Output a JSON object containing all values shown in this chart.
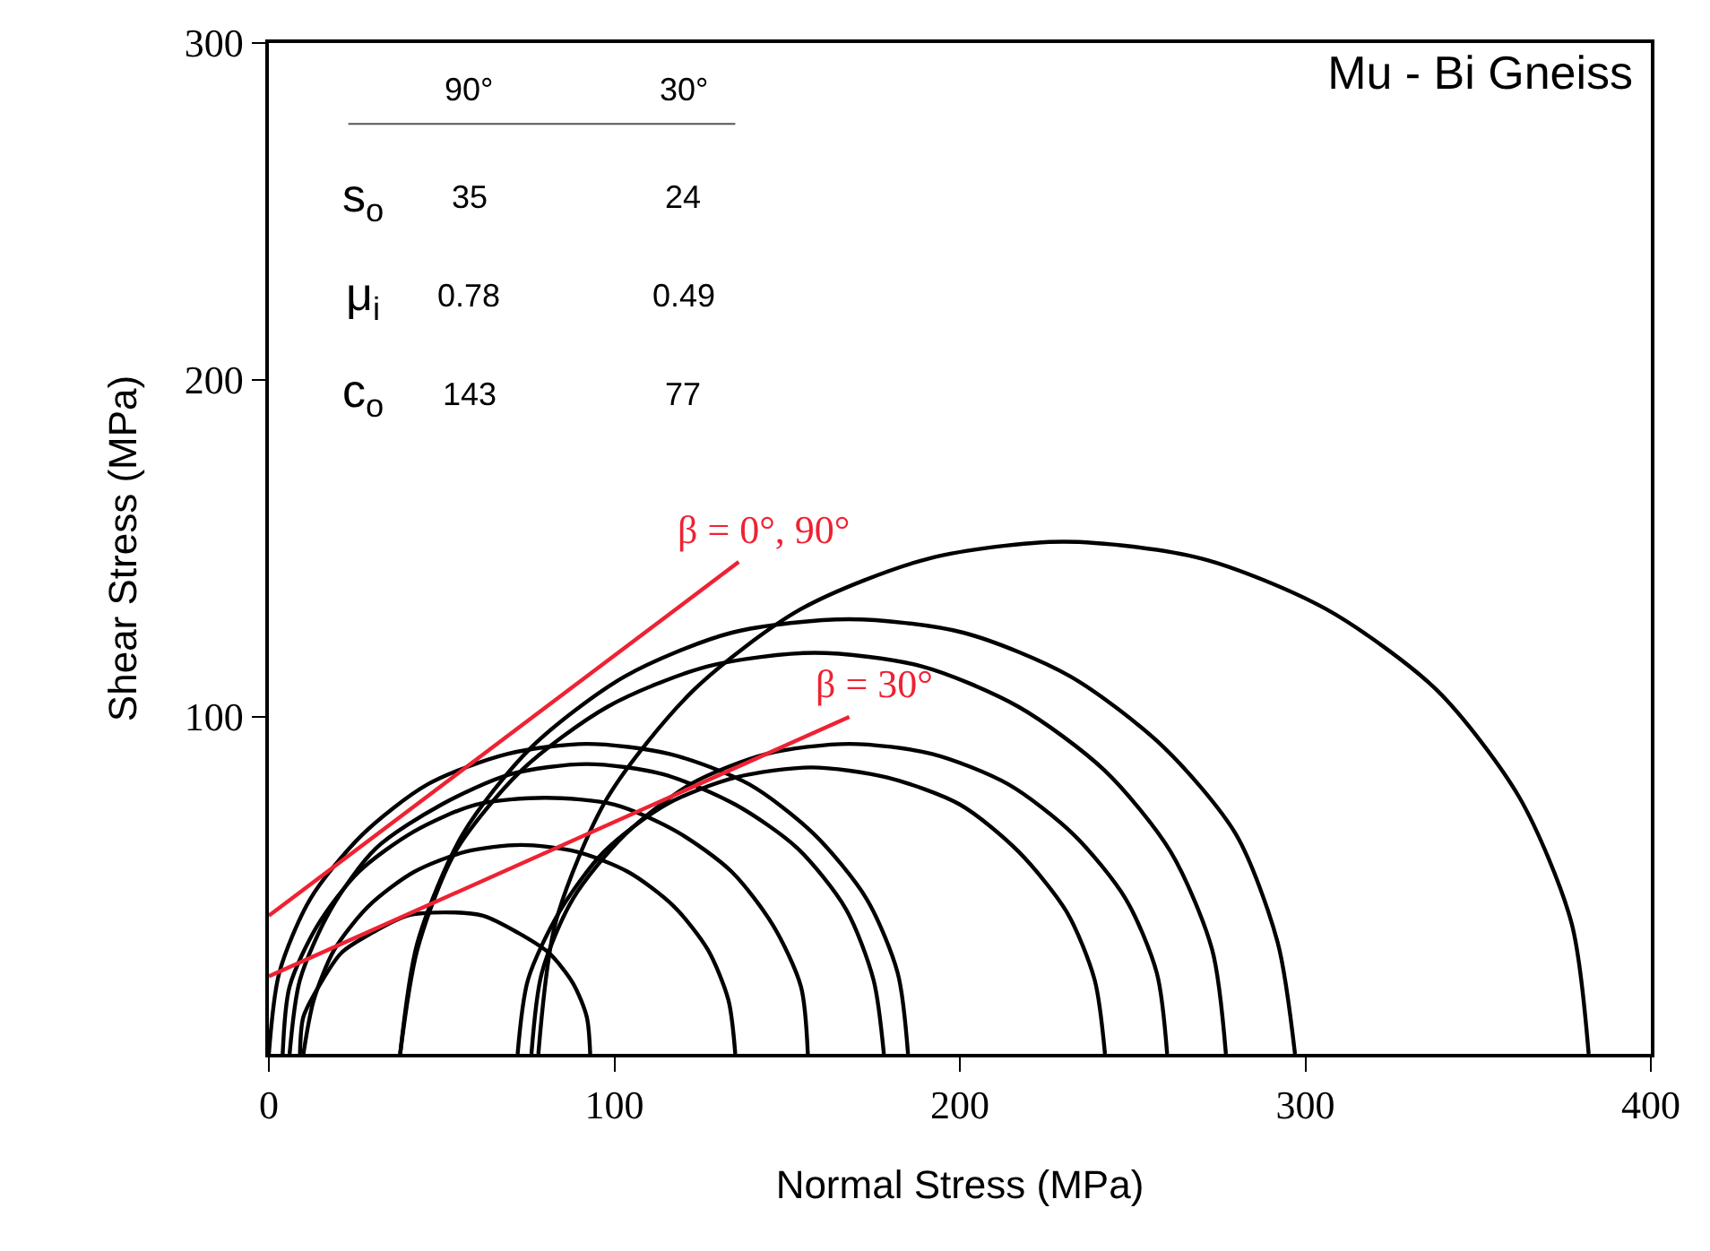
{
  "chart_data": {
    "type": "line",
    "title": "Mu - Bi Gneiss",
    "xlabel": "Normal Stress (MPa)",
    "ylabel": "Shear Stress (MPa)",
    "xlim": [
      0,
      400
    ],
    "ylim": [
      0,
      300
    ],
    "xticks": [
      0,
      100,
      200,
      300,
      400
    ],
    "yticks": [
      100,
      200,
      300
    ],
    "legend": false,
    "marker": "none",
    "line_style": "solid",
    "annotations": [
      "90°",
      "30°",
      "s$_{o}$",
      "35",
      "24",
      "μ$_{i}$",
      "0.78",
      "0.49",
      "c$_{o}$",
      "143",
      "77"
    ],
    "series": [
      {
        "color": "#000000",
        "x": [
          185,
          182,
          173,
          158,
          139,
          116,
          92,
          69,
          46,
          27,
          12,
          3,
          0
        ],
        "values": [
          0,
          24,
          46,
          65,
          80,
          89,
          92,
          89,
          80,
          65,
          46,
          24,
          0
        ]
      },
      {
        "color": "#000000",
        "x": [
          178,
          175,
          167,
          153,
          135,
          114,
          92,
          70,
          50,
          31,
          18,
          9,
          6
        ],
        "values": [
          0,
          22,
          43,
          61,
          74,
          83,
          86,
          83,
          74,
          61,
          43,
          22,
          0
        ]
      },
      {
        "color": "#000000",
        "x": [
          156,
          154,
          146,
          134,
          118,
          100,
          80,
          60,
          42,
          26,
          14,
          6,
          4
        ],
        "values": [
          0,
          20,
          38,
          54,
          66,
          74,
          76,
          74,
          66,
          54,
          38,
          20,
          0
        ]
      },
      {
        "color": "#000000",
        "x": [
          135,
          133,
          127,
          117,
          104,
          89,
          73,
          57,
          42,
          29,
          19,
          13,
          10
        ],
        "values": [
          0,
          16,
          31,
          44,
          54,
          60,
          62,
          60,
          54,
          44,
          31,
          16,
          0
        ]
      },
      {
        "color": "#000000",
        "x": [
          93,
          92,
          88,
          81,
          72,
          62,
          51,
          40,
          30,
          21,
          15,
          10,
          9
        ],
        "values": [
          0,
          11,
          21,
          30,
          36,
          41,
          42,
          41,
          36,
          30,
          21,
          11,
          0
        ]
      },
      {
        "color": "#000000",
        "x": [
          297,
          292,
          280,
          259,
          232,
          201,
          168,
          134,
          103,
          76,
          56,
          43,
          38
        ],
        "values": [
          0,
          33,
          65,
          91,
          112,
          125,
          129,
          125,
          112,
          91,
          65,
          33,
          0
        ]
      },
      {
        "color": "#000000",
        "x": [
          277,
          273,
          261,
          242,
          217,
          189,
          158,
          127,
          98,
          73,
          54,
          43,
          38
        ],
        "values": [
          0,
          31,
          60,
          84,
          103,
          115,
          119,
          115,
          103,
          84,
          60,
          31,
          0
        ]
      },
      {
        "color": "#000000",
        "x": [
          242,
          239,
          231,
          217,
          200,
          179,
          157,
          135,
          115,
          97,
          84,
          75,
          72
        ],
        "values": [
          0,
          22,
          42,
          60,
          74,
          82,
          85,
          82,
          74,
          60,
          42,
          22,
          0
        ]
      },
      {
        "color": "#000000",
        "x": [
          260,
          257,
          248,
          233,
          214,
          192,
          168,
          144,
          122,
          103,
          88,
          79,
          76
        ],
        "values": [
          0,
          24,
          46,
          65,
          80,
          89,
          92,
          89,
          80,
          65,
          46,
          24,
          0
        ]
      },
      {
        "color": "#000000",
        "x": [
          382,
          377,
          362,
          338,
          306,
          270,
          230,
          191,
          154,
          123,
          98,
          83,
          78
        ],
        "values": [
          0,
          39,
          76,
          108,
          132,
          147,
          152,
          147,
          132,
          108,
          76,
          39,
          0
        ]
      },
      {
        "name": "β = 0°, 90°",
        "color": "#ee2233",
        "x": [
          0,
          136
        ],
        "values": [
          41,
          146
        ]
      },
      {
        "name": "β = 30°",
        "color": "#ee2233",
        "x": [
          0,
          168
        ],
        "values": [
          23,
          100
        ]
      }
    ]
  }
}
